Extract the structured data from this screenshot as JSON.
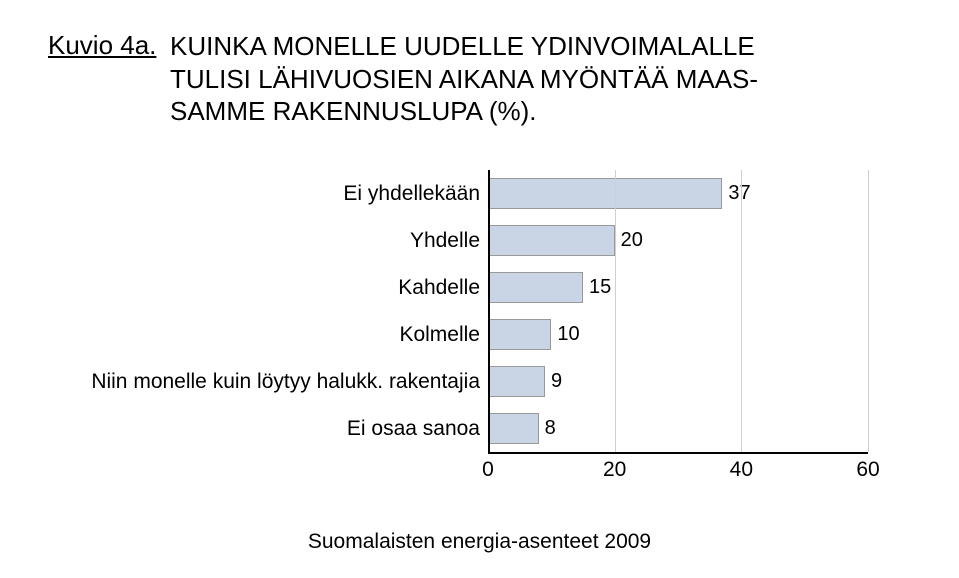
{
  "figure_label": "Kuvio 4a.",
  "title_line1": "KUINKA MONELLE UUDELLE YDINVOIMALALLE",
  "title_line2": "TULISI LÄHIVUOSIEN AIKANA MYÖNTÄÄ MAAS-",
  "title_line3": "SAMME RAKENNUSLUPA (%).",
  "footer": "Suomalaisten energia-asenteet 2009",
  "chart": {
    "type": "bar",
    "orientation": "horizontal",
    "xlim": [
      0,
      60
    ],
    "xtick_step": 20,
    "xticks": [
      0,
      20,
      40,
      60
    ],
    "bar_color": "#c9d4e4",
    "bar_border_color": "#999999",
    "background_color": "#ffffff",
    "grid_color": "#cfcfcf",
    "axis_color": "#000000",
    "label_fontsize": 21,
    "value_fontsize": 20,
    "categories": [
      "Ei yhdellekään",
      "Yhdelle",
      "Kahdelle",
      "Kolmelle",
      "Niin monelle kuin löytyy halukk. rakentajia",
      "Ei osaa sanoa"
    ],
    "values": [
      37,
      20,
      15,
      10,
      9,
      8
    ]
  }
}
